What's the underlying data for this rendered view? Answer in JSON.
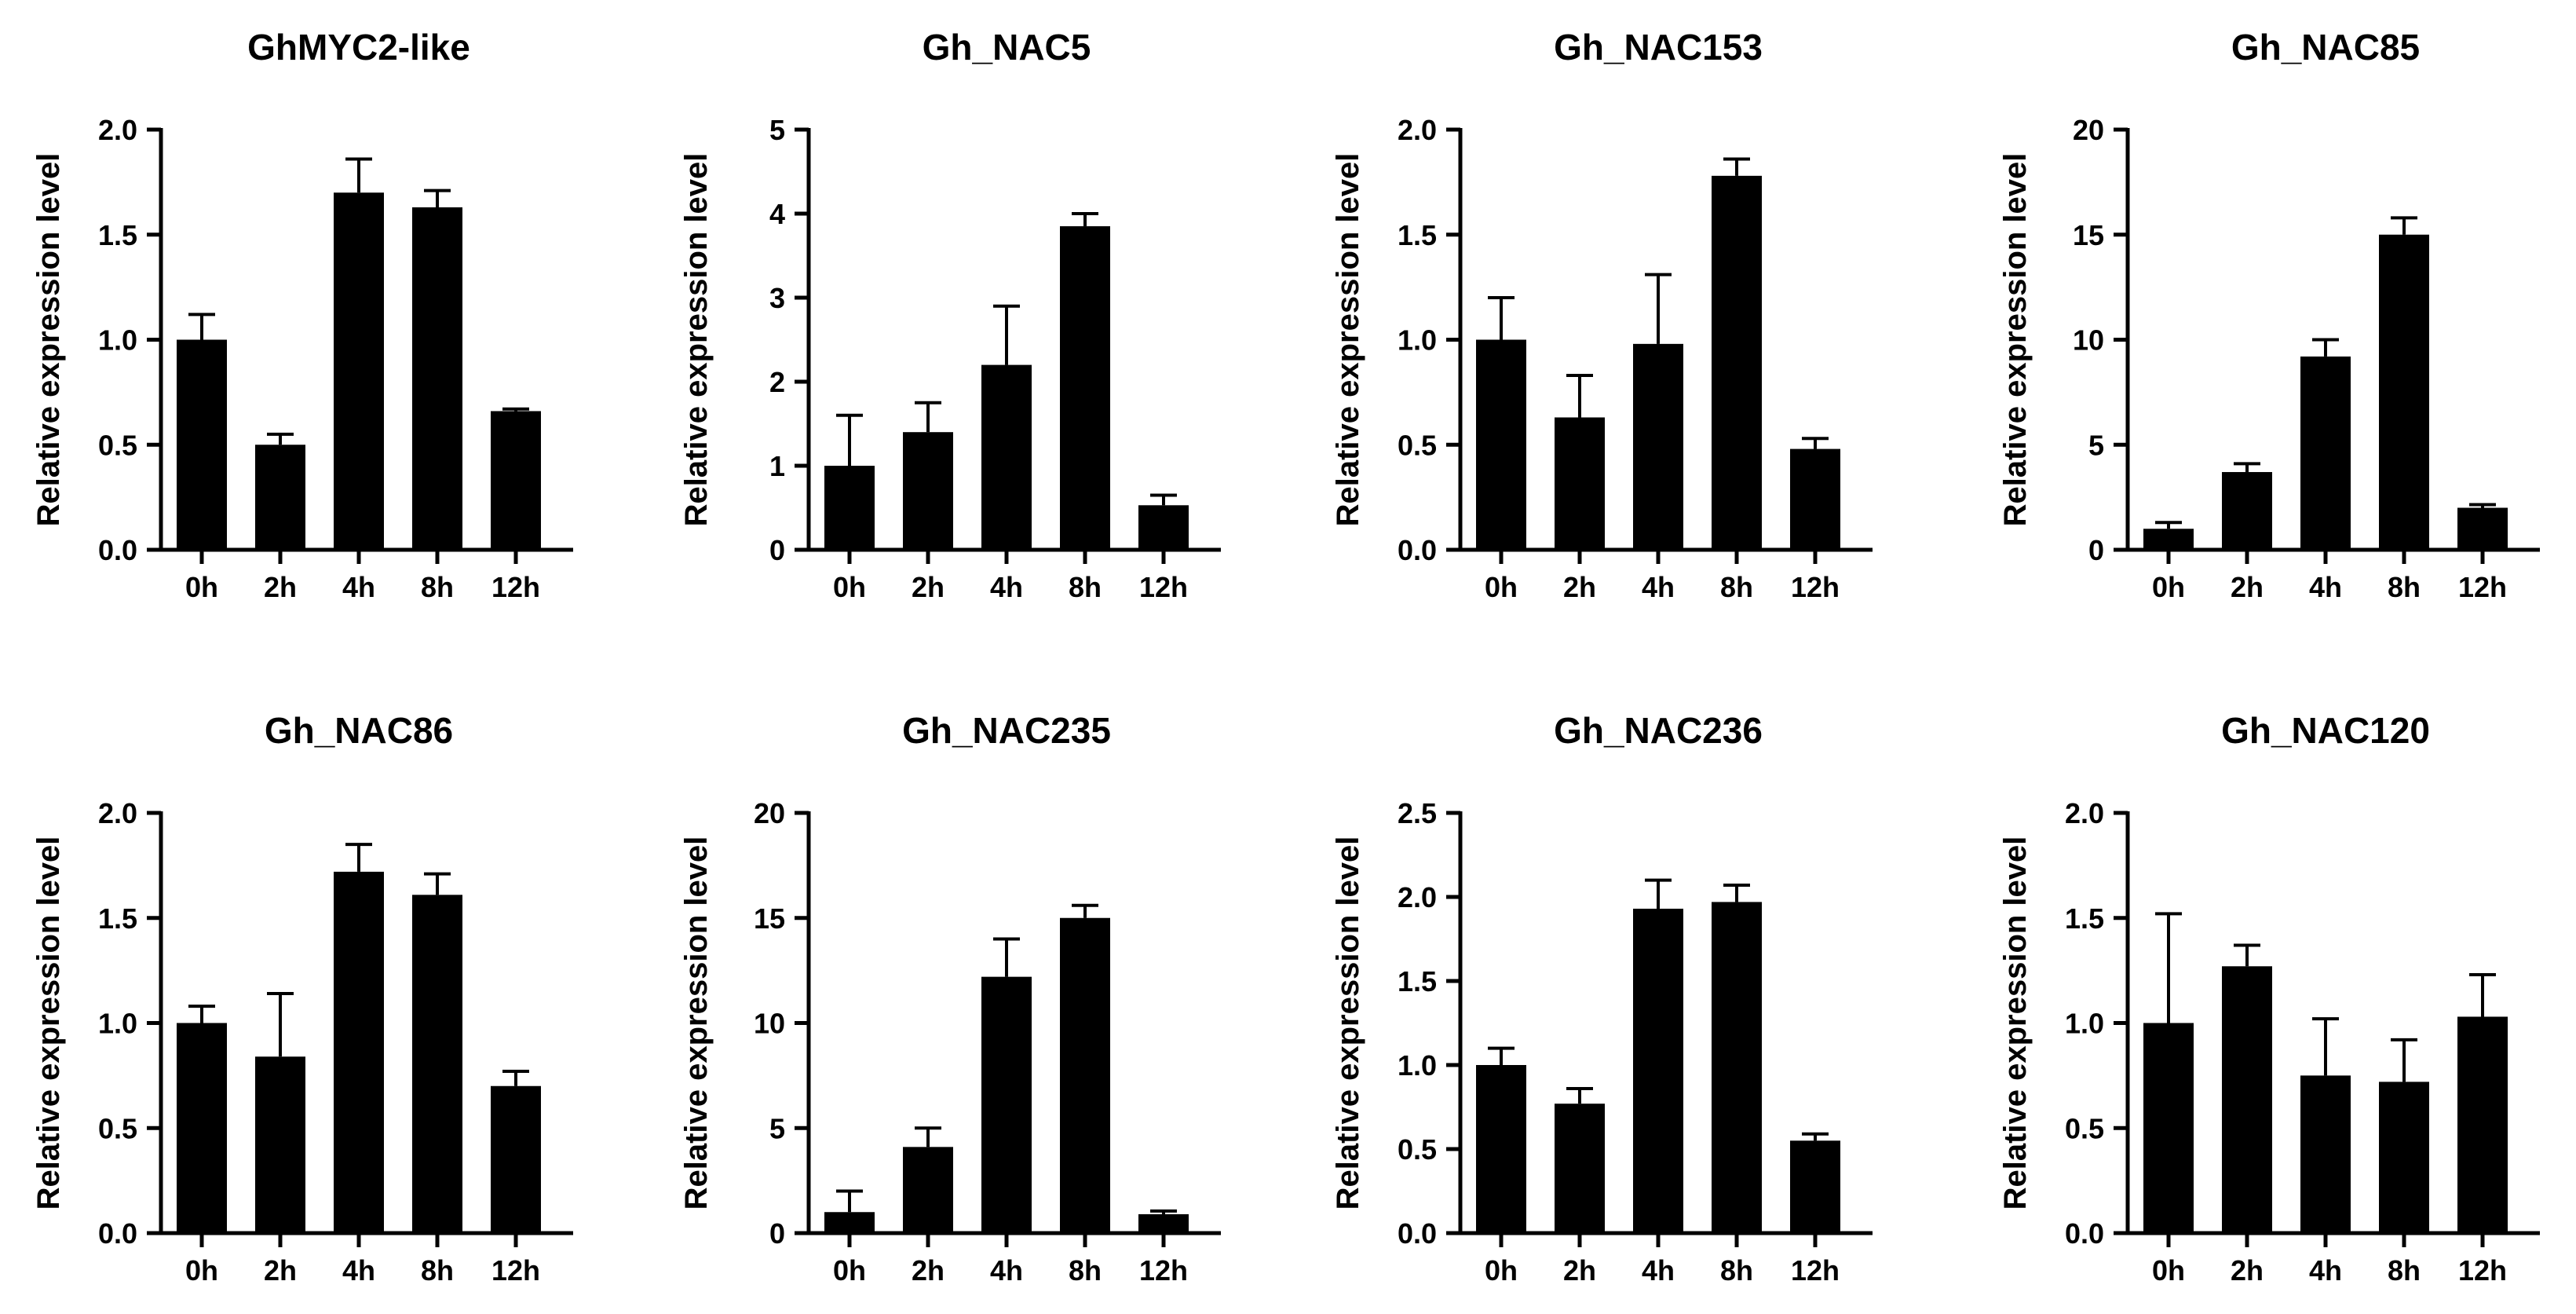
{
  "chart_data": [
    {
      "type": "bar",
      "title": "GhMYC2-like",
      "ylabel": "Relative expression level",
      "xlabel": "",
      "categories": [
        "0h",
        "2h",
        "4h",
        "8h",
        "12h"
      ],
      "values": [
        1.0,
        0.5,
        1.7,
        1.63,
        0.66
      ],
      "errors": [
        0.12,
        0.05,
        0.16,
        0.08,
        0.01
      ],
      "ylim": [
        0,
        2.0
      ],
      "yticks": [
        0,
        0.5,
        1.0,
        1.5,
        2.0
      ],
      "ytick_labels": [
        "0.0",
        "0.5",
        "1.0",
        "1.5",
        "2.0"
      ]
    },
    {
      "type": "bar",
      "title": "Gh_NAC5",
      "ylabel": "Relative expression level",
      "xlabel": "",
      "categories": [
        "0h",
        "2h",
        "4h",
        "8h",
        "12h"
      ],
      "values": [
        1.0,
        1.4,
        2.2,
        3.85,
        0.53
      ],
      "errors": [
        0.6,
        0.35,
        0.7,
        0.15,
        0.12
      ],
      "ylim": [
        0,
        5
      ],
      "yticks": [
        0,
        1,
        2,
        3,
        4,
        5
      ],
      "ytick_labels": [
        "0",
        "1",
        "2",
        "3",
        "4",
        "5"
      ]
    },
    {
      "type": "bar",
      "title": "Gh_NAC153",
      "ylabel": "Relative expression level",
      "xlabel": "",
      "categories": [
        "0h",
        "2h",
        "4h",
        "8h",
        "12h"
      ],
      "values": [
        1.0,
        0.63,
        0.98,
        1.78,
        0.48
      ],
      "errors": [
        0.2,
        0.2,
        0.33,
        0.08,
        0.05
      ],
      "ylim": [
        0,
        2.0
      ],
      "yticks": [
        0,
        0.5,
        1.0,
        1.5,
        2.0
      ],
      "ytick_labels": [
        "0.0",
        "0.5",
        "1.0",
        "1.5",
        "2.0"
      ]
    },
    {
      "type": "bar",
      "title": "Gh_NAC85",
      "ylabel": "Relative expression level",
      "xlabel": "",
      "categories": [
        "0h",
        "2h",
        "4h",
        "8h",
        "12h"
      ],
      "values": [
        1.0,
        3.7,
        9.2,
        15.0,
        2.0
      ],
      "errors": [
        0.3,
        0.4,
        0.8,
        0.8,
        0.15
      ],
      "ylim": [
        0,
        20
      ],
      "yticks": [
        0,
        5,
        10,
        15,
        20
      ],
      "ytick_labels": [
        "0",
        "5",
        "10",
        "15",
        "20"
      ]
    },
    {
      "type": "bar",
      "title": "Gh_NAC86",
      "ylabel": "Relative expression level",
      "xlabel": "",
      "categories": [
        "0h",
        "2h",
        "4h",
        "8h",
        "12h"
      ],
      "values": [
        1.0,
        0.84,
        1.72,
        1.61,
        0.7
      ],
      "errors": [
        0.08,
        0.3,
        0.13,
        0.1,
        0.07
      ],
      "ylim": [
        0,
        2.0
      ],
      "yticks": [
        0,
        0.5,
        1.0,
        1.5,
        2.0
      ],
      "ytick_labels": [
        "0.0",
        "0.5",
        "1.0",
        "1.5",
        "2.0"
      ]
    },
    {
      "type": "bar",
      "title": "Gh_NAC235",
      "ylabel": "Relative expression level",
      "xlabel": "",
      "categories": [
        "0h",
        "2h",
        "4h",
        "8h",
        "12h"
      ],
      "values": [
        1.0,
        4.1,
        12.2,
        15.0,
        0.9
      ],
      "errors": [
        1.0,
        0.9,
        1.8,
        0.6,
        0.15
      ],
      "ylim": [
        0,
        20
      ],
      "yticks": [
        0,
        5,
        10,
        15,
        20
      ],
      "ytick_labels": [
        "0",
        "5",
        "10",
        "15",
        "20"
      ]
    },
    {
      "type": "bar",
      "title": "Gh_NAC236",
      "ylabel": "Relative expression level",
      "xlabel": "",
      "categories": [
        "0h",
        "2h",
        "4h",
        "8h",
        "12h"
      ],
      "values": [
        1.0,
        0.77,
        1.93,
        1.97,
        0.55
      ],
      "errors": [
        0.1,
        0.09,
        0.17,
        0.1,
        0.04
      ],
      "ylim": [
        0,
        2.5
      ],
      "yticks": [
        0,
        0.5,
        1.0,
        1.5,
        2.0,
        2.5
      ],
      "ytick_labels": [
        "0.0",
        "0.5",
        "1.0",
        "1.5",
        "2.0",
        "2.5"
      ]
    },
    {
      "type": "bar",
      "title": "Gh_NAC120",
      "ylabel": "Relative expression level",
      "xlabel": "",
      "categories": [
        "0h",
        "2h",
        "4h",
        "8h",
        "12h"
      ],
      "values": [
        1.0,
        1.27,
        0.75,
        0.72,
        1.03
      ],
      "errors": [
        0.52,
        0.1,
        0.27,
        0.2,
        0.2
      ],
      "ylim": [
        0,
        2.0
      ],
      "yticks": [
        0,
        0.5,
        1.0,
        1.5,
        2.0
      ],
      "ytick_labels": [
        "0.0",
        "0.5",
        "1.0",
        "1.5",
        "2.0"
      ]
    }
  ]
}
